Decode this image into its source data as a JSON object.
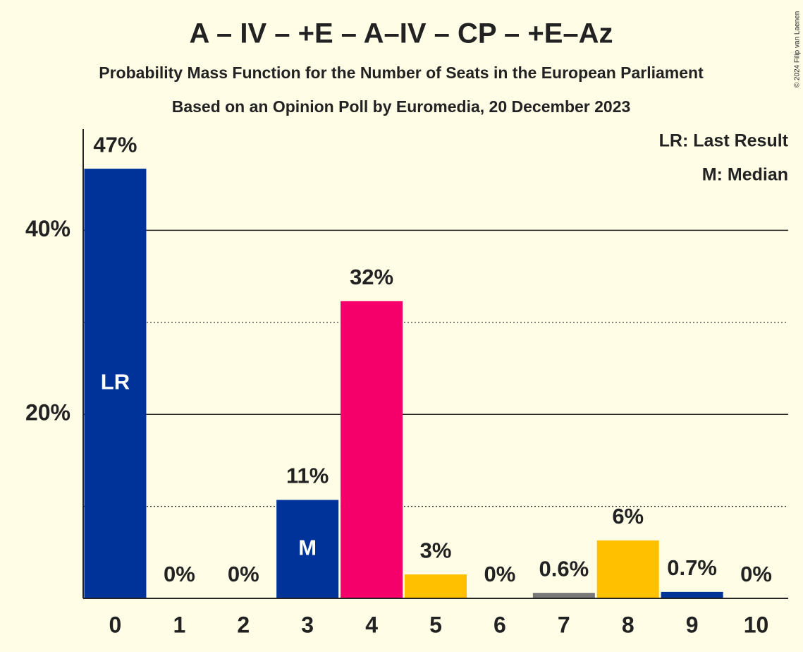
{
  "chart_data": {
    "type": "bar",
    "title": "A – IV – +E – A–IV – CP – +E–Az",
    "subtitles": [
      "Probability Mass Function for the Number of Seats in the European Parliament",
      "Based on an Opinion Poll by Euromedia, 20 December 2023"
    ],
    "categories": [
      "0",
      "1",
      "2",
      "3",
      "4",
      "5",
      "6",
      "7",
      "8",
      "9",
      "10"
    ],
    "values": [
      46.7,
      0,
      0,
      10.7,
      32.3,
      2.6,
      0,
      0.6,
      6.3,
      0.7,
      0
    ],
    "value_labels": [
      "47%",
      "0%",
      "0%",
      "11%",
      "32%",
      "3%",
      "0%",
      "0.6%",
      "6%",
      "0.7%",
      "0%"
    ],
    "colors": [
      "#003399",
      "#003399",
      "#003399",
      "#003399",
      "#f5006a",
      "#ffc000",
      "#ffc000",
      "#777777",
      "#ffc000",
      "#003399",
      "#003399"
    ],
    "bar_annotations": [
      "LR",
      null,
      null,
      "M",
      null,
      null,
      null,
      null,
      null,
      null,
      null
    ],
    "ylim": [
      0,
      51
    ],
    "yticks": [
      {
        "value": 20,
        "label": "20%"
      },
      {
        "value": 40,
        "label": "40%"
      }
    ],
    "minor_yticks": [
      10,
      30
    ],
    "grid": true,
    "legend": [
      "LR: Last Result",
      "M: Median"
    ],
    "copyright": "© 2024 Filip van Laenen"
  }
}
